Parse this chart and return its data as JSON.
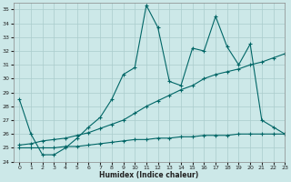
{
  "xlabel": "Humidex (Indice chaleur)",
  "ylabel": "",
  "background_color": "#cce8e8",
  "grid_color": "#aacccc",
  "line_color": "#006666",
  "xlim": [
    -0.5,
    23
  ],
  "ylim": [
    24,
    35.5
  ],
  "yticks": [
    24,
    25,
    26,
    27,
    28,
    29,
    30,
    31,
    32,
    33,
    34,
    35
  ],
  "xticks": [
    0,
    1,
    2,
    3,
    4,
    5,
    6,
    7,
    8,
    9,
    10,
    11,
    12,
    13,
    14,
    15,
    16,
    17,
    18,
    19,
    20,
    21,
    22,
    23
  ],
  "series": [
    {
      "x": [
        0,
        1,
        2,
        3,
        4,
        5,
        6,
        7,
        8,
        9,
        10,
        11,
        12,
        13,
        14,
        15,
        16,
        17,
        18,
        19,
        20,
        21,
        22,
        23
      ],
      "y": [
        25.0,
        25.0,
        25.0,
        25.0,
        25.1,
        25.1,
        25.2,
        25.3,
        25.4,
        25.5,
        25.6,
        25.6,
        25.7,
        25.7,
        25.8,
        25.8,
        25.9,
        25.9,
        25.9,
        26.0,
        26.0,
        26.0,
        26.0,
        26.0
      ],
      "marker": "+",
      "markersize": 3,
      "linewidth": 0.8
    },
    {
      "x": [
        0,
        1,
        2,
        3,
        4,
        5,
        6,
        7,
        8,
        9,
        10,
        11,
        12,
        13,
        14,
        15,
        16,
        17,
        18,
        19,
        20,
        21,
        22,
        23
      ],
      "y": [
        25.2,
        25.3,
        25.5,
        25.6,
        25.7,
        25.9,
        26.1,
        26.4,
        26.7,
        27.0,
        27.5,
        28.0,
        28.4,
        28.8,
        29.2,
        29.5,
        30.0,
        30.3,
        30.5,
        30.7,
        31.0,
        31.2,
        31.5,
        31.8
      ],
      "marker": "+",
      "markersize": 3,
      "linewidth": 0.8
    },
    {
      "x": [
        0,
        1,
        2,
        3,
        4,
        5,
        6,
        7,
        8,
        9,
        10,
        11,
        12,
        13,
        14,
        15,
        16,
        17,
        18,
        19,
        20,
        21,
        22,
        23
      ],
      "y": [
        28.5,
        26.0,
        24.5,
        24.5,
        25.0,
        25.7,
        26.5,
        27.2,
        28.5,
        30.3,
        30.8,
        35.3,
        33.7,
        29.8,
        29.5,
        32.2,
        32.0,
        34.5,
        32.3,
        31.0,
        32.5,
        27.0,
        26.5,
        26.0
      ],
      "marker": "+",
      "markersize": 3,
      "linewidth": 0.8
    }
  ]
}
